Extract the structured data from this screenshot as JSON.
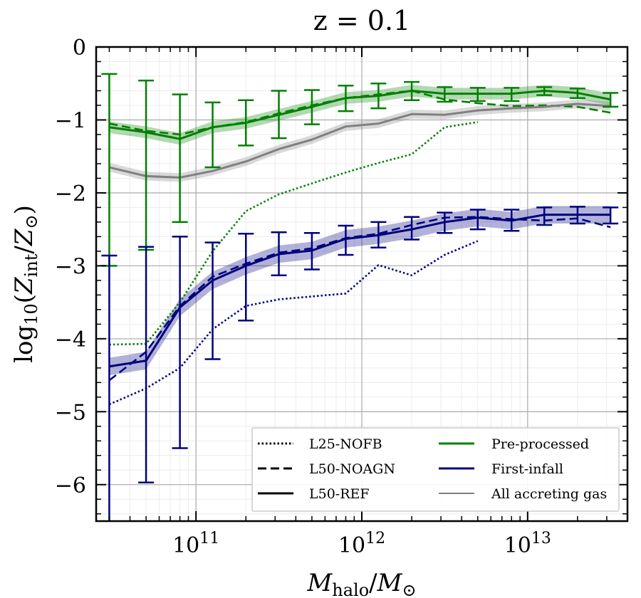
{
  "chart_data": {
    "type": "line",
    "title": "z = 0.1",
    "xlabel": "M_halo/M_⊙",
    "ylabel": "log10(Z_int/Z_⊙)",
    "x_scale": "log",
    "xlim": [
      25000000000.0,
      40000000000000.0
    ],
    "ylim": [
      -6.5,
      0
    ],
    "grid": true,
    "legend_position": "lower-right",
    "x_tick_labels": [
      {
        "value": 100000000000.0,
        "base": "10",
        "exp": "11"
      },
      {
        "value": 1000000000000.0,
        "base": "10",
        "exp": "12"
      },
      {
        "value": 10000000000000.0,
        "base": "10",
        "exp": "13"
      }
    ],
    "y_ticks": [
      0,
      -1,
      -2,
      -3,
      -4,
      -5,
      -6
    ],
    "y_tick_labels": [
      "0",
      "−1",
      "−2",
      "−3",
      "−4",
      "−5",
      "−6"
    ],
    "colors": {
      "pre_processed": "#008000",
      "first_infall": "#00007f",
      "all_accreting": "#808080"
    },
    "legend": {
      "styles": [
        "L25-NOFB",
        "L50-NOAGN",
        "L50-REF"
      ],
      "components": [
        "Pre-processed",
        "First-infall",
        "All accreting gas"
      ]
    },
    "series": [
      {
        "name": "Pre-processed L50-REF",
        "component": "pre_processed",
        "style": "solid",
        "band": 0.08,
        "x": [
          30000000000.0,
          50000000000.0,
          80000000000.0,
          126000000000.0,
          200000000000.0,
          316000000000.0,
          500000000000.0,
          800000000000.0,
          1260000000000.0,
          2000000000000.0,
          3160000000000.0,
          5000000000000.0,
          8000000000000.0,
          12600000000000.0,
          20000000000000.0,
          31600000000000.0
        ],
        "y": [
          -1.1,
          -1.17,
          -1.26,
          -1.1,
          -1.04,
          -0.93,
          -0.82,
          -0.7,
          -0.67,
          -0.6,
          -0.64,
          -0.64,
          -0.64,
          -0.6,
          -0.63,
          -0.72
        ]
      },
      {
        "name": "Pre-processed L50-NOAGN",
        "component": "pre_processed",
        "style": "dashed",
        "x": [
          30000000000.0,
          50000000000.0,
          80000000000.0,
          126000000000.0,
          200000000000.0,
          316000000000.0,
          500000000000.0,
          800000000000.0,
          1260000000000.0,
          2000000000000.0,
          3160000000000.0,
          5000000000000.0,
          8000000000000.0,
          12600000000000.0,
          20000000000000.0,
          31600000000000.0
        ],
        "y": [
          -1.05,
          -1.15,
          -1.2,
          -1.1,
          -1.03,
          -0.91,
          -0.8,
          -0.7,
          -0.65,
          -0.6,
          -0.72,
          -0.77,
          -0.81,
          -0.8,
          -0.82,
          -0.9
        ]
      },
      {
        "name": "Pre-processed L25-NOFB",
        "component": "pre_processed",
        "style": "dotted",
        "x": [
          30000000000.0,
          50000000000.0,
          80000000000.0,
          126000000000.0,
          200000000000.0,
          316000000000.0,
          500000000000.0,
          800000000000.0,
          1260000000000.0,
          2000000000000.0,
          3160000000000.0,
          5000000000000.0
        ],
        "y": [
          -4.08,
          -4.07,
          -3.5,
          -2.8,
          -2.25,
          -2.02,
          -1.87,
          -1.72,
          -1.59,
          -1.47,
          -1.1,
          -1.03
        ]
      },
      {
        "name": "First-infall L50-REF",
        "component": "first_infall",
        "style": "solid",
        "band": 0.12,
        "x": [
          30000000000.0,
          50000000000.0,
          80000000000.0,
          126000000000.0,
          200000000000.0,
          316000000000.0,
          500000000000.0,
          800000000000.0,
          1260000000000.0,
          2000000000000.0,
          3160000000000.0,
          5000000000000.0,
          8000000000000.0,
          12600000000000.0,
          20000000000000.0,
          31600000000000.0
        ],
        "y": [
          -4.38,
          -4.3,
          -3.57,
          -3.2,
          -3.0,
          -2.84,
          -2.79,
          -2.63,
          -2.58,
          -2.5,
          -2.4,
          -2.34,
          -2.38,
          -2.3,
          -2.3,
          -2.3
        ]
      },
      {
        "name": "First-infall L50-NOAGN",
        "component": "first_infall",
        "style": "dashed",
        "x": [
          30000000000.0,
          50000000000.0,
          80000000000.0,
          126000000000.0,
          200000000000.0,
          316000000000.0,
          500000000000.0,
          800000000000.0,
          1260000000000.0,
          2000000000000.0,
          3160000000000.0,
          5000000000000.0,
          8000000000000.0,
          12600000000000.0,
          20000000000000.0,
          31600000000000.0
        ],
        "y": [
          -4.57,
          -4.18,
          -3.55,
          -3.15,
          -2.97,
          -2.82,
          -2.76,
          -2.62,
          -2.56,
          -2.44,
          -2.34,
          -2.33,
          -2.36,
          -2.38,
          -2.35,
          -2.47
        ]
      },
      {
        "name": "First-infall L25-NOFB",
        "component": "first_infall",
        "style": "dotted",
        "x": [
          30000000000.0,
          50000000000.0,
          80000000000.0,
          126000000000.0,
          200000000000.0,
          316000000000.0,
          500000000000.0,
          800000000000.0,
          1260000000000.0,
          2000000000000.0,
          3160000000000.0,
          5000000000000.0
        ],
        "y": [
          -4.9,
          -4.68,
          -4.4,
          -3.87,
          -3.55,
          -3.46,
          -3.42,
          -3.38,
          -2.99,
          -3.13,
          -2.85,
          -2.66
        ]
      },
      {
        "name": "All accreting gas L50-REF",
        "component": "all_accreting",
        "style": "solid",
        "band": 0.06,
        "x": [
          30000000000.0,
          50000000000.0,
          80000000000.0,
          126000000000.0,
          200000000000.0,
          316000000000.0,
          500000000000.0,
          800000000000.0,
          1260000000000.0,
          2000000000000.0,
          3160000000000.0,
          5000000000000.0,
          8000000000000.0,
          12600000000000.0,
          20000000000000.0,
          31600000000000.0
        ],
        "y": [
          -1.65,
          -1.77,
          -1.79,
          -1.7,
          -1.57,
          -1.4,
          -1.27,
          -1.09,
          -1.05,
          -0.92,
          -0.93,
          -0.87,
          -0.84,
          -0.82,
          -0.78,
          -0.81
        ]
      }
    ],
    "error_bars": [
      {
        "component": "pre_processed",
        "x": [
          30000000000.0,
          50000000000.0,
          80000000000.0,
          126000000000.0,
          200000000000.0,
          316000000000.0,
          500000000000.0,
          800000000000.0,
          1260000000000.0,
          2000000000000.0,
          3160000000000.0,
          5000000000000.0,
          8000000000000.0,
          12600000000000.0,
          20000000000000.0,
          31600000000000.0
        ],
        "y": [
          -1.1,
          -1.17,
          -1.26,
          -1.1,
          -1.04,
          -0.93,
          -0.82,
          -0.7,
          -0.67,
          -0.6,
          -0.64,
          -0.64,
          -0.64,
          -0.6,
          -0.63,
          -0.72
        ],
        "low": [
          -3.0,
          -2.78,
          -2.4,
          -1.65,
          -1.35,
          -1.25,
          -1.06,
          -0.88,
          -0.84,
          -0.73,
          -0.75,
          -0.74,
          -0.74,
          -0.66,
          -0.7,
          -0.82
        ],
        "high": [
          -0.37,
          -0.46,
          -0.65,
          -0.76,
          -0.73,
          -0.6,
          -0.59,
          -0.53,
          -0.5,
          -0.48,
          -0.55,
          -0.56,
          -0.56,
          -0.55,
          -0.57,
          -0.63
        ]
      },
      {
        "component": "first_infall",
        "x": [
          30000000000.0,
          50000000000.0,
          80000000000.0,
          126000000000.0,
          200000000000.0,
          316000000000.0,
          500000000000.0,
          800000000000.0,
          1260000000000.0,
          2000000000000.0,
          3160000000000.0,
          5000000000000.0,
          8000000000000.0,
          12600000000000.0,
          20000000000000.0,
          31600000000000.0
        ],
        "y": [
          -4.38,
          -4.3,
          -3.57,
          -3.2,
          -3.0,
          -2.84,
          -2.79,
          -2.63,
          -2.58,
          -2.5,
          -2.4,
          -2.34,
          -2.38,
          -2.3,
          -2.3,
          -2.3
        ],
        "low": [
          -6.5,
          -5.97,
          -5.5,
          -4.28,
          -3.75,
          -3.13,
          -3.05,
          -2.85,
          -2.75,
          -2.64,
          -2.55,
          -2.5,
          -2.52,
          -2.44,
          -2.42,
          -2.42
        ],
        "high": [
          -2.86,
          -2.74,
          -2.6,
          -2.68,
          -2.56,
          -2.54,
          -2.55,
          -2.45,
          -2.4,
          -2.33,
          -2.27,
          -2.23,
          -2.23,
          -2.2,
          -2.19,
          -2.2
        ]
      }
    ]
  }
}
